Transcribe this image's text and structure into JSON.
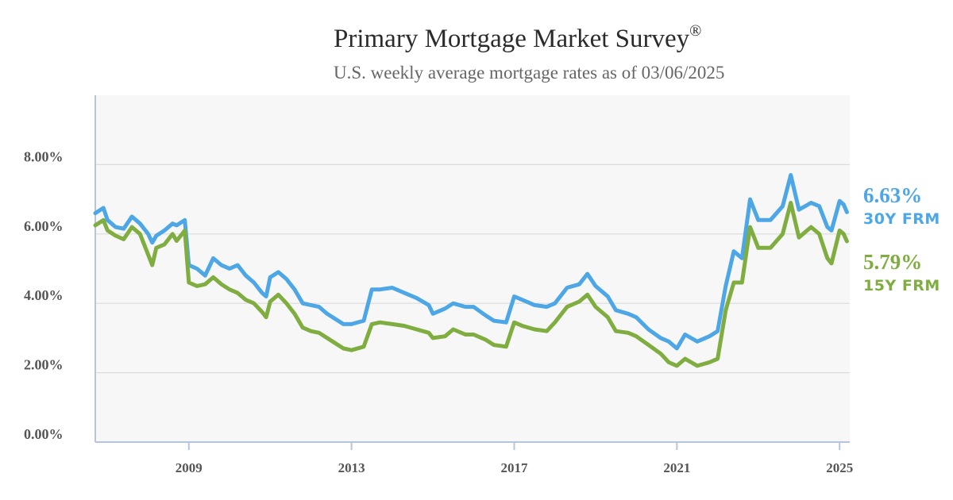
{
  "header": {
    "title": "Primary Mortgage Market Survey",
    "title_mark": "®",
    "subtitle": "U.S. weekly average mortgage rates as of 03/06/2025"
  },
  "colors": {
    "series_30y": "#4da6e6",
    "series_15y": "#7fad3f",
    "plot_bg": "#f7f7f7",
    "grid": "#dcdcdc",
    "axis": "#b8c4dc"
  },
  "chart_data": {
    "type": "line",
    "title": "Primary Mortgage Market Survey",
    "subtitle": "U.S. weekly average mortgage rates as of 03/06/2025",
    "xlim": [
      2006.7,
      2025.25
    ],
    "ylim": [
      0,
      10
    ],
    "y_ticks": [
      {
        "value": 0,
        "label": "0.00%"
      },
      {
        "value": 2,
        "label": "2.00%"
      },
      {
        "value": 4,
        "label": "4.00%"
      },
      {
        "value": 6,
        "label": "6.00%"
      },
      {
        "value": 8,
        "label": "8.00%"
      }
    ],
    "x_ticks": [
      {
        "value": 2009,
        "label": "2009"
      },
      {
        "value": 2013,
        "label": "2013"
      },
      {
        "value": 2017,
        "label": "2017"
      },
      {
        "value": 2021,
        "label": "2021"
      },
      {
        "value": 2025,
        "label": "2025"
      }
    ],
    "grid": true,
    "legend": "end-of-line labels, right",
    "series": [
      {
        "name": "30Y FRM",
        "end_value": "6.63%",
        "end_label": "30Y FRM",
        "points": [
          [
            2006.7,
            6.6
          ],
          [
            2006.9,
            6.75
          ],
          [
            2007.0,
            6.4
          ],
          [
            2007.2,
            6.2
          ],
          [
            2007.4,
            6.15
          ],
          [
            2007.6,
            6.5
          ],
          [
            2007.8,
            6.3
          ],
          [
            2008.0,
            6.0
          ],
          [
            2008.1,
            5.75
          ],
          [
            2008.2,
            5.95
          ],
          [
            2008.4,
            6.1
          ],
          [
            2008.6,
            6.3
          ],
          [
            2008.7,
            6.25
          ],
          [
            2008.9,
            6.4
          ],
          [
            2009.0,
            5.1
          ],
          [
            2009.2,
            5.0
          ],
          [
            2009.4,
            4.8
          ],
          [
            2009.6,
            5.3
          ],
          [
            2009.8,
            5.1
          ],
          [
            2010.0,
            5.0
          ],
          [
            2010.2,
            5.1
          ],
          [
            2010.4,
            4.8
          ],
          [
            2010.6,
            4.6
          ],
          [
            2010.8,
            4.3
          ],
          [
            2010.9,
            4.2
          ],
          [
            2011.0,
            4.75
          ],
          [
            2011.2,
            4.9
          ],
          [
            2011.4,
            4.7
          ],
          [
            2011.6,
            4.4
          ],
          [
            2011.8,
            4.0
          ],
          [
            2012.0,
            3.95
          ],
          [
            2012.2,
            3.9
          ],
          [
            2012.4,
            3.7
          ],
          [
            2012.6,
            3.55
          ],
          [
            2012.8,
            3.4
          ],
          [
            2013.0,
            3.4
          ],
          [
            2013.3,
            3.5
          ],
          [
            2013.5,
            4.4
          ],
          [
            2013.7,
            4.4
          ],
          [
            2014.0,
            4.45
          ],
          [
            2014.3,
            4.3
          ],
          [
            2014.6,
            4.15
          ],
          [
            2014.9,
            3.95
          ],
          [
            2015.0,
            3.7
          ],
          [
            2015.3,
            3.85
          ],
          [
            2015.5,
            4.0
          ],
          [
            2015.8,
            3.9
          ],
          [
            2016.0,
            3.9
          ],
          [
            2016.3,
            3.65
          ],
          [
            2016.5,
            3.5
          ],
          [
            2016.8,
            3.45
          ],
          [
            2017.0,
            4.2
          ],
          [
            2017.2,
            4.1
          ],
          [
            2017.5,
            3.95
          ],
          [
            2017.8,
            3.9
          ],
          [
            2018.0,
            4.0
          ],
          [
            2018.3,
            4.45
          ],
          [
            2018.6,
            4.55
          ],
          [
            2018.8,
            4.85
          ],
          [
            2019.0,
            4.5
          ],
          [
            2019.3,
            4.2
          ],
          [
            2019.5,
            3.8
          ],
          [
            2019.8,
            3.7
          ],
          [
            2020.0,
            3.6
          ],
          [
            2020.3,
            3.25
          ],
          [
            2020.6,
            3.0
          ],
          [
            2020.8,
            2.9
          ],
          [
            2021.0,
            2.7
          ],
          [
            2021.2,
            3.1
          ],
          [
            2021.5,
            2.9
          ],
          [
            2021.8,
            3.05
          ],
          [
            2022.0,
            3.2
          ],
          [
            2022.2,
            4.5
          ],
          [
            2022.4,
            5.5
          ],
          [
            2022.6,
            5.3
          ],
          [
            2022.8,
            7.0
          ],
          [
            2023.0,
            6.4
          ],
          [
            2023.3,
            6.4
          ],
          [
            2023.6,
            6.8
          ],
          [
            2023.8,
            7.7
          ],
          [
            2024.0,
            6.7
          ],
          [
            2024.3,
            6.9
          ],
          [
            2024.5,
            6.8
          ],
          [
            2024.7,
            6.2
          ],
          [
            2024.8,
            6.1
          ],
          [
            2025.0,
            6.95
          ],
          [
            2025.1,
            6.85
          ],
          [
            2025.18,
            6.63
          ]
        ]
      },
      {
        "name": "15Y FRM",
        "end_value": "5.79%",
        "end_label": "15Y FRM",
        "points": [
          [
            2006.7,
            6.25
          ],
          [
            2006.9,
            6.4
          ],
          [
            2007.0,
            6.1
          ],
          [
            2007.2,
            5.95
          ],
          [
            2007.4,
            5.85
          ],
          [
            2007.6,
            6.2
          ],
          [
            2007.8,
            6.0
          ],
          [
            2008.0,
            5.4
          ],
          [
            2008.1,
            5.1
          ],
          [
            2008.2,
            5.6
          ],
          [
            2008.4,
            5.7
          ],
          [
            2008.6,
            6.0
          ],
          [
            2008.7,
            5.8
          ],
          [
            2008.9,
            6.1
          ],
          [
            2009.0,
            4.6
          ],
          [
            2009.2,
            4.5
          ],
          [
            2009.4,
            4.55
          ],
          [
            2009.6,
            4.75
          ],
          [
            2009.8,
            4.55
          ],
          [
            2010.0,
            4.4
          ],
          [
            2010.2,
            4.3
          ],
          [
            2010.4,
            4.1
          ],
          [
            2010.6,
            4.0
          ],
          [
            2010.8,
            3.75
          ],
          [
            2010.9,
            3.6
          ],
          [
            2011.0,
            4.05
          ],
          [
            2011.2,
            4.25
          ],
          [
            2011.4,
            4.0
          ],
          [
            2011.6,
            3.7
          ],
          [
            2011.8,
            3.3
          ],
          [
            2012.0,
            3.2
          ],
          [
            2012.2,
            3.15
          ],
          [
            2012.4,
            3.0
          ],
          [
            2012.6,
            2.85
          ],
          [
            2012.8,
            2.7
          ],
          [
            2013.0,
            2.65
          ],
          [
            2013.3,
            2.75
          ],
          [
            2013.5,
            3.4
          ],
          [
            2013.7,
            3.45
          ],
          [
            2014.0,
            3.4
          ],
          [
            2014.3,
            3.35
          ],
          [
            2014.6,
            3.25
          ],
          [
            2014.9,
            3.15
          ],
          [
            2015.0,
            3.0
          ],
          [
            2015.3,
            3.05
          ],
          [
            2015.5,
            3.25
          ],
          [
            2015.8,
            3.1
          ],
          [
            2016.0,
            3.1
          ],
          [
            2016.3,
            2.95
          ],
          [
            2016.5,
            2.8
          ],
          [
            2016.8,
            2.75
          ],
          [
            2017.0,
            3.45
          ],
          [
            2017.2,
            3.35
          ],
          [
            2017.5,
            3.25
          ],
          [
            2017.8,
            3.2
          ],
          [
            2018.0,
            3.45
          ],
          [
            2018.3,
            3.9
          ],
          [
            2018.6,
            4.05
          ],
          [
            2018.8,
            4.25
          ],
          [
            2019.0,
            3.9
          ],
          [
            2019.3,
            3.6
          ],
          [
            2019.5,
            3.2
          ],
          [
            2019.8,
            3.15
          ],
          [
            2020.0,
            3.05
          ],
          [
            2020.3,
            2.8
          ],
          [
            2020.6,
            2.55
          ],
          [
            2020.8,
            2.3
          ],
          [
            2021.0,
            2.2
          ],
          [
            2021.2,
            2.4
          ],
          [
            2021.5,
            2.2
          ],
          [
            2021.8,
            2.3
          ],
          [
            2022.0,
            2.4
          ],
          [
            2022.2,
            3.8
          ],
          [
            2022.4,
            4.6
          ],
          [
            2022.6,
            4.6
          ],
          [
            2022.8,
            6.2
          ],
          [
            2023.0,
            5.6
          ],
          [
            2023.3,
            5.6
          ],
          [
            2023.6,
            6.0
          ],
          [
            2023.8,
            6.9
          ],
          [
            2024.0,
            5.9
          ],
          [
            2024.3,
            6.2
          ],
          [
            2024.5,
            6.0
          ],
          [
            2024.7,
            5.3
          ],
          [
            2024.8,
            5.15
          ],
          [
            2025.0,
            6.1
          ],
          [
            2025.1,
            6.0
          ],
          [
            2025.18,
            5.79
          ]
        ]
      }
    ]
  }
}
